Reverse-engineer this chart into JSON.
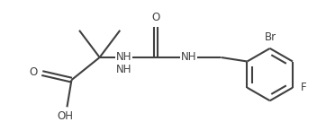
{
  "background_color": "#ffffff",
  "line_color": "#404040",
  "text_color": "#404040",
  "bond_lw": 1.5,
  "font_size": 8.0,
  "figsize": [
    3.52,
    1.36
  ],
  "dpi": 100,
  "xlim": [
    -0.5,
    6.5
  ],
  "ylim": [
    -1.1,
    1.5
  ]
}
